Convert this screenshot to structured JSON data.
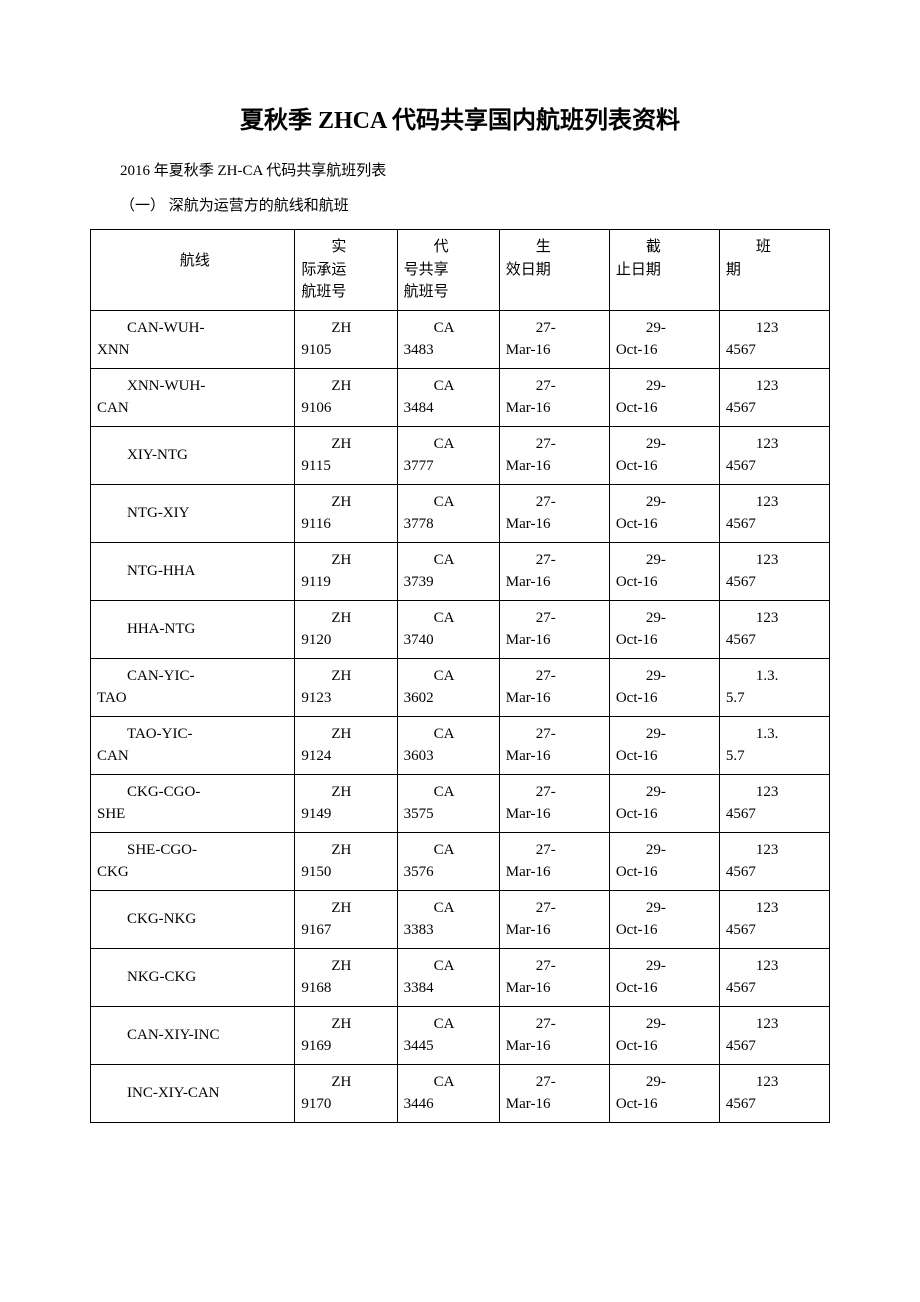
{
  "title": "夏秋季 ZHCA 代码共享国内航班列表资料",
  "subtitle": "2016 年夏秋季 ZH-CA 代码共享航班列表",
  "section_label_prefix": "（一）",
  "section_label_text": " 深航为运营方的航线和航班",
  "headers": {
    "route": "航线",
    "actual_line1": "　　实",
    "actual_line2": "际承运",
    "actual_line3": "航班号",
    "code_line1": "　　代",
    "code_line2": "号共享",
    "code_line3": "航班号",
    "eff_line1": "　　生",
    "eff_line2": "效日期",
    "end_line1": "　　截",
    "end_line2": "止日期",
    "sched_line1": "　　班",
    "sched_line2": "期"
  },
  "rows": [
    {
      "route_l1": "　　CAN-WUH-",
      "route_l2": "XNN",
      "actual_l1": "　　ZH",
      "actual_l2": "9105",
      "code_l1": "　　CA",
      "code_l2": "3483",
      "eff_l1": "　　27-",
      "eff_l2": "Mar-16",
      "end_l1": "　　29-",
      "end_l2": "Oct-16",
      "sched_l1": "　　123",
      "sched_l2": "4567"
    },
    {
      "route_l1": "　　XNN-WUH-",
      "route_l2": "CAN",
      "actual_l1": "　　ZH",
      "actual_l2": "9106",
      "code_l1": "　　CA",
      "code_l2": "3484",
      "eff_l1": "　　27-",
      "eff_l2": "Mar-16",
      "end_l1": "　　29-",
      "end_l2": "Oct-16",
      "sched_l1": "　　123",
      "sched_l2": "4567"
    },
    {
      "route_l1": "　　XIY-NTG",
      "route_l2": "",
      "actual_l1": "　　ZH",
      "actual_l2": "9115",
      "code_l1": "　　CA",
      "code_l2": "3777",
      "eff_l1": "　　27-",
      "eff_l2": "Mar-16",
      "end_l1": "　　29-",
      "end_l2": "Oct-16",
      "sched_l1": "　　123",
      "sched_l2": "4567"
    },
    {
      "route_l1": "　　NTG-XIY",
      "route_l2": "",
      "actual_l1": "　　ZH",
      "actual_l2": "9116",
      "code_l1": "　　CA",
      "code_l2": "3778",
      "eff_l1": "　　27-",
      "eff_l2": "Mar-16",
      "end_l1": "　　29-",
      "end_l2": "Oct-16",
      "sched_l1": "　　123",
      "sched_l2": "4567"
    },
    {
      "route_l1": "　　NTG-HHA",
      "route_l2": "",
      "actual_l1": "　　ZH",
      "actual_l2": "9119",
      "code_l1": "　　CA",
      "code_l2": "3739",
      "eff_l1": "　　27-",
      "eff_l2": "Mar-16",
      "end_l1": "　　29-",
      "end_l2": "Oct-16",
      "sched_l1": "　　123",
      "sched_l2": "4567"
    },
    {
      "route_l1": "　　HHA-NTG",
      "route_l2": "",
      "actual_l1": "　　ZH",
      "actual_l2": "9120",
      "code_l1": "　　CA",
      "code_l2": "3740",
      "eff_l1": "　　27-",
      "eff_l2": "Mar-16",
      "end_l1": "　　29-",
      "end_l2": "Oct-16",
      "sched_l1": "　　123",
      "sched_l2": "4567"
    },
    {
      "route_l1": "　　CAN-YIC-",
      "route_l2": "TAO",
      "actual_l1": "　　ZH",
      "actual_l2": "9123",
      "code_l1": "　　CA",
      "code_l2": "3602",
      "eff_l1": "　　27-",
      "eff_l2": "Mar-16",
      "end_l1": "　　29-",
      "end_l2": "Oct-16",
      "sched_l1": "　　1.3.",
      "sched_l2": "5.7"
    },
    {
      "route_l1": "　　TAO-YIC-",
      "route_l2": "CAN",
      "actual_l1": "　　ZH",
      "actual_l2": "9124",
      "code_l1": "　　CA",
      "code_l2": "3603",
      "eff_l1": "　　27-",
      "eff_l2": "Mar-16",
      "end_l1": "　　29-",
      "end_l2": "Oct-16",
      "sched_l1": "　　1.3.",
      "sched_l2": "5.7"
    },
    {
      "route_l1": "　　CKG-CGO-",
      "route_l2": "SHE",
      "actual_l1": "　　ZH",
      "actual_l2": "9149",
      "code_l1": "　　CA",
      "code_l2": "3575",
      "eff_l1": "　　27-",
      "eff_l2": "Mar-16",
      "end_l1": "　　29-",
      "end_l2": "Oct-16",
      "sched_l1": "　　123",
      "sched_l2": "4567"
    },
    {
      "route_l1": "　　SHE-CGO-",
      "route_l2": "CKG",
      "actual_l1": "　　ZH",
      "actual_l2": "9150",
      "code_l1": "　　CA",
      "code_l2": "3576",
      "eff_l1": "　　27-",
      "eff_l2": "Mar-16",
      "end_l1": "　　29-",
      "end_l2": "Oct-16",
      "sched_l1": "　　123",
      "sched_l2": "4567"
    },
    {
      "route_l1": "　　CKG-NKG",
      "route_l2": "",
      "actual_l1": "　　ZH",
      "actual_l2": "9167",
      "code_l1": "　　CA",
      "code_l2": "3383",
      "eff_l1": "　　27-",
      "eff_l2": "Mar-16",
      "end_l1": "　　29-",
      "end_l2": "Oct-16",
      "sched_l1": "　　123",
      "sched_l2": "4567"
    },
    {
      "route_l1": "　　NKG-CKG",
      "route_l2": "",
      "actual_l1": "　　ZH",
      "actual_l2": "9168",
      "code_l1": "　　CA",
      "code_l2": "3384",
      "eff_l1": "　　27-",
      "eff_l2": "Mar-16",
      "end_l1": "　　29-",
      "end_l2": "Oct-16",
      "sched_l1": "　　123",
      "sched_l2": "4567"
    },
    {
      "route_l1": "　　CAN-XIY-INC",
      "route_l2": "",
      "actual_l1": "　　ZH",
      "actual_l2": "9169",
      "code_l1": "　　CA",
      "code_l2": "3445",
      "eff_l1": "　　27-",
      "eff_l2": "Mar-16",
      "end_l1": "　　29-",
      "end_l2": "Oct-16",
      "sched_l1": "　　123",
      "sched_l2": "4567"
    },
    {
      "route_l1": "　　INC-XIY-CAN",
      "route_l2": "",
      "actual_l1": "　　ZH",
      "actual_l2": "9170",
      "code_l1": "　　CA",
      "code_l2": "3446",
      "eff_l1": "　　27-",
      "eff_l2": "Mar-16",
      "end_l1": "　　29-",
      "end_l2": "Oct-16",
      "sched_l1": "　　123",
      "sched_l2": "4567"
    }
  ]
}
